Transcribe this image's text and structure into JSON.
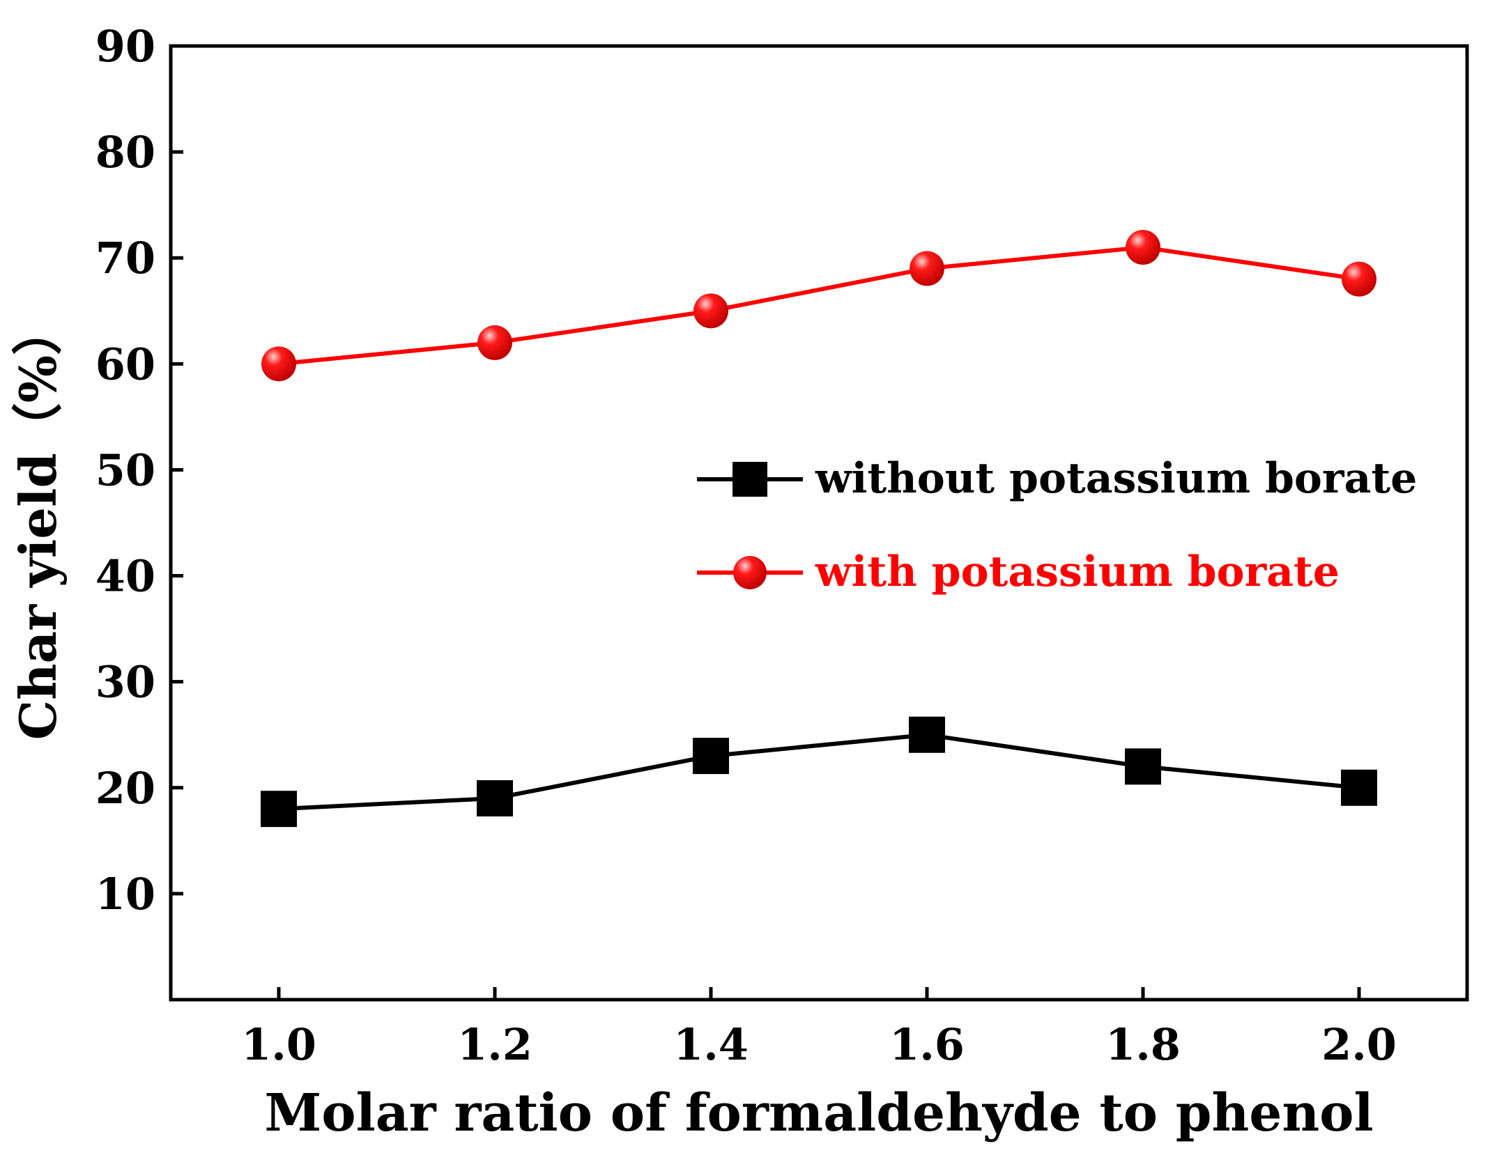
{
  "chart_data": {
    "type": "line",
    "title": "",
    "xlabel": "Molar ratio of formaldehyde to phenol",
    "ylabel": "Char yield（%）",
    "x": [
      1.0,
      1.2,
      1.4,
      1.6,
      1.8,
      2.0
    ],
    "x_tick_labels": [
      "1.0",
      "1.2",
      "1.4",
      "1.6",
      "1.8",
      "2.0"
    ],
    "xlim": [
      0.9,
      2.1
    ],
    "ylim": [
      0,
      90
    ],
    "y_ticks": [
      10,
      20,
      30,
      40,
      50,
      60,
      70,
      80,
      90
    ],
    "y_tick_labels": [
      "10",
      "20",
      "30",
      "40",
      "50",
      "60",
      "70",
      "80",
      "90"
    ],
    "grid": false,
    "legend_position": "center-right",
    "series": [
      {
        "name": "without potassium borate",
        "values": [
          18,
          19,
          23,
          25,
          22,
          20
        ],
        "color": "#000000",
        "marker": "square"
      },
      {
        "name": "with potassium borate",
        "values": [
          60,
          62,
          65,
          69,
          71,
          68
        ],
        "color": "#ff0000",
        "marker": "circle"
      }
    ]
  }
}
